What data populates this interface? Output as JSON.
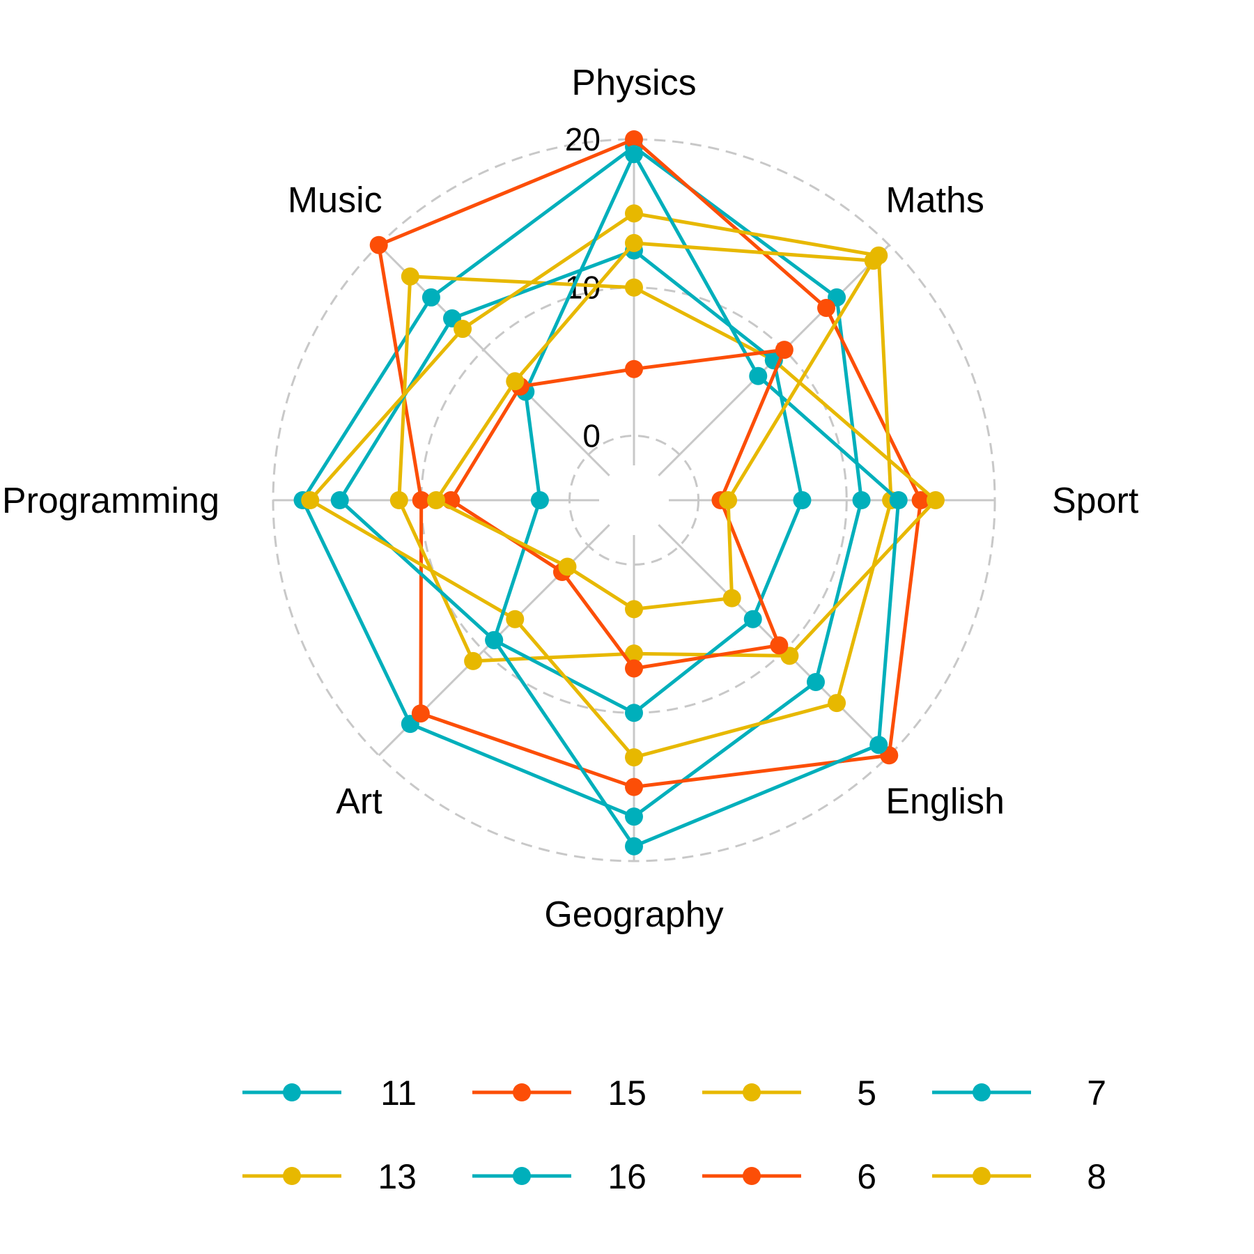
{
  "chart_data": {
    "type": "radar",
    "axes": [
      "Physics",
      "Maths",
      "Sport",
      "English",
      "Geography",
      "Art",
      "Programming",
      "Music"
    ],
    "ticks": [
      0,
      10,
      20
    ],
    "tick_labels": [
      "0",
      "10",
      "20"
    ],
    "rlim": [
      -2,
      20
    ],
    "grid": true,
    "legend_position": "bottom",
    "series": [
      {
        "name": "11",
        "color": "#00AFBB",
        "values": [
          19.5,
          15,
          11,
          13,
          17,
          17,
          18,
          15
        ]
      },
      {
        "name": "15",
        "color": "#FC4E07",
        "values": [
          20,
          14,
          15,
          20,
          15,
          16,
          10,
          20
        ]
      },
      {
        "name": "5",
        "color": "#E7B800",
        "values": [
          10,
          9,
          16,
          10.5,
          6,
          11,
          11.5,
          17
        ]
      },
      {
        "name": "7",
        "color": "#00AFBB",
        "values": [
          12.5,
          9,
          7,
          7,
          10,
          9,
          15.5,
          13
        ]
      },
      {
        "name": "13",
        "color": "#E7B800",
        "values": [
          15,
          19,
          13,
          15,
          13,
          7,
          17.5,
          12
        ]
      },
      {
        "name": "16",
        "color": "#00AFBB",
        "values": [
          19,
          7.5,
          13.5,
          19,
          19,
          9,
          2,
          6
        ]
      },
      {
        "name": "6",
        "color": "#FC4E07",
        "values": [
          4.5,
          10,
          1.5,
          9.5,
          7,
          2.5,
          8,
          6.5
        ]
      },
      {
        "name": "8",
        "color": "#E7B800",
        "values": [
          13,
          18.5,
          2,
          5,
          3,
          2,
          9,
          7
        ]
      }
    ]
  }
}
